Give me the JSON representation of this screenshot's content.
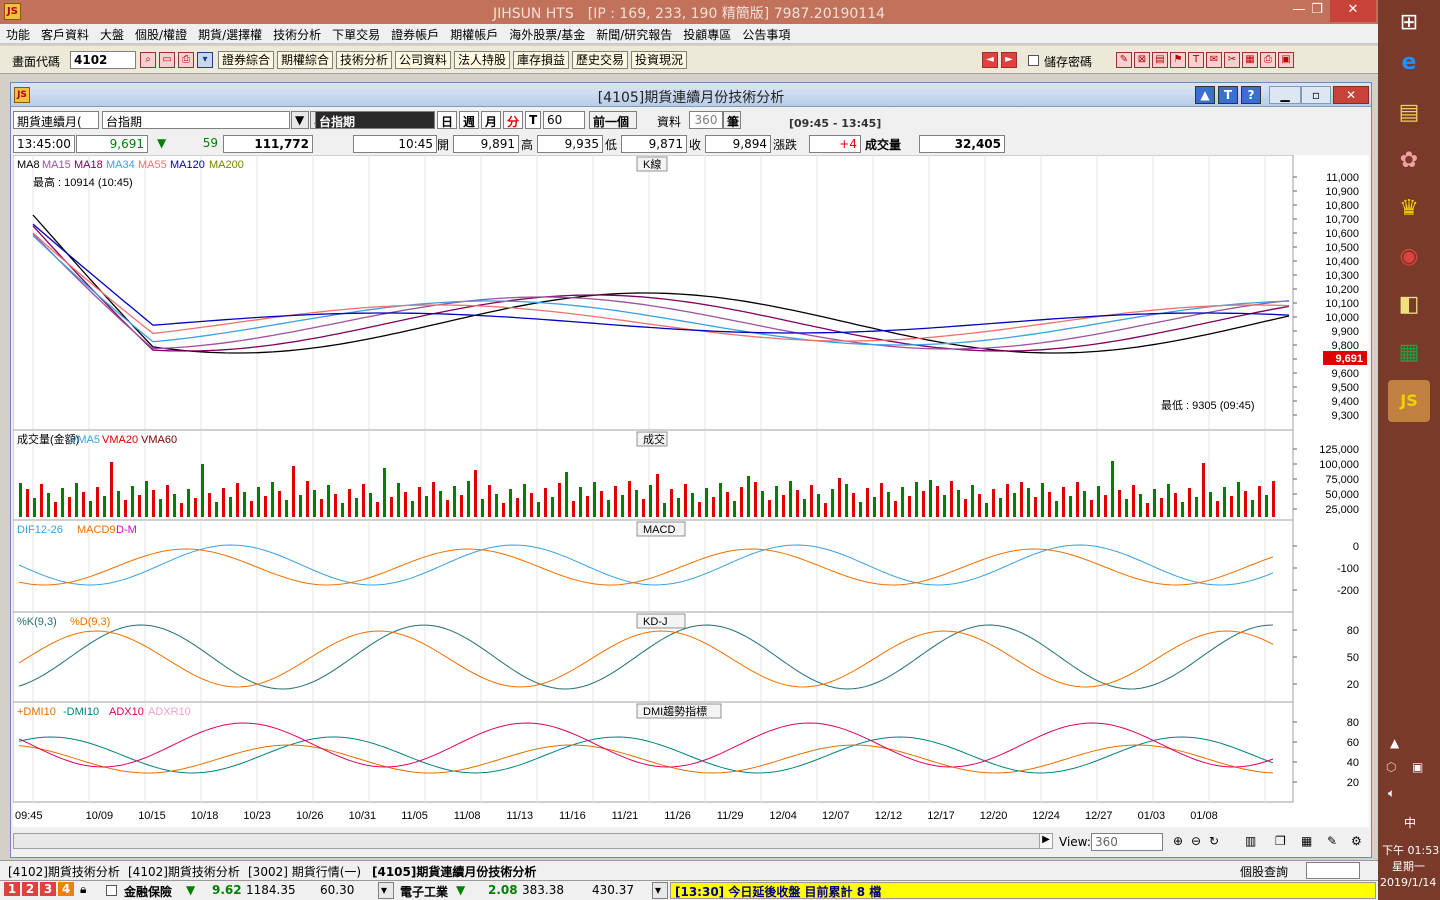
{
  "window": {
    "title": "JIHSUN HTS　[IP : 169, 233, 190 精簡版] 7987.20190114",
    "logo": "JS",
    "min": "—",
    "max": "❐",
    "close": "✕"
  },
  "menu": [
    "功能",
    "客戶資料",
    "大盤",
    "個股/權證",
    "期貨/選擇權",
    "技術分析",
    "下單交易",
    "證券帳戶",
    "期權帳戶",
    "海外股票/基金",
    "新聞/研究報告",
    "投顧專區",
    "公告事項"
  ],
  "toolbar": {
    "code_label": "畫面代碼",
    "code_value": "4102",
    "buttons": [
      "證券綜合",
      "期權綜合",
      "技術分析",
      "公司資料",
      "法人持股",
      "庫存損益",
      "歷史交易",
      "投資現況"
    ],
    "save_pwd": "儲存密碼"
  },
  "child": {
    "title": "[4105]期貨連續月份技術分析",
    "btn_up": "▲",
    "btn_t": "T",
    "btn_help": "?"
  },
  "controls": {
    "contract": "期貨連續月(",
    "index": "台指期",
    "name_box": "台指期",
    "periods": [
      "日",
      "週",
      "月",
      "分",
      "T"
    ],
    "minutes": "60",
    "prev": "前一個",
    "data_label": "資料",
    "data_count": "360",
    "unit": "筆",
    "time_range": "[09:45 - 13:45]"
  },
  "quote": {
    "time": "13:45:00",
    "price": "9,691",
    "arrow": "▼",
    "change": "59",
    "volume_total": "111,772",
    "bar_time": "10:45",
    "open_label": "開",
    "open": "9,891",
    "high_label": "高",
    "high": "9,935",
    "low_label": "低",
    "low": "9,871",
    "close_label": "收",
    "close": "9,894",
    "chg_label": "漲跌",
    "chg": "+4",
    "vol_label": "成交量",
    "vol": "32,405"
  },
  "panels": {
    "k": {
      "title": "K線",
      "legend": [
        "MA8",
        "MA15",
        "MA18",
        "MA34",
        "MA55",
        "MA120",
        "MA200"
      ],
      "legend_colors": [
        "#000000",
        "#a050a0",
        "#800060",
        "#3aa0e0",
        "#f07070",
        "#0000c0",
        "#808000"
      ],
      "max_label": "最高 : 10914 (10:45)",
      "min_label": "最低 : 9305 (09:45)",
      "ticks": [
        "11,000",
        "10,900",
        "10,800",
        "10,700",
        "10,600",
        "10,500",
        "10,400",
        "10,300",
        "10,200",
        "10,100",
        "10,000",
        "9,900",
        "9,800",
        "9,700",
        "9,600",
        "9,500",
        "9,400",
        "9,300"
      ],
      "last": "9,691"
    },
    "vol": {
      "title": "成交",
      "legend": [
        "成交量(金額)",
        "VMA5",
        "VMA20",
        "VMA60"
      ],
      "legend_colors": [
        "#000000",
        "#3aa0e0",
        "#e00000",
        "#800000"
      ],
      "ticks": [
        "125,000",
        "100,000",
        "75,000",
        "50,000",
        "25,000"
      ]
    },
    "macd": {
      "title": "MACD",
      "legend": [
        "DIF12-26",
        "MACD9",
        "D-M"
      ],
      "legend_colors": [
        "#3aa0e0",
        "#f07000",
        "#e000e0"
      ],
      "ticks": [
        "0",
        "-100",
        "-200"
      ]
    },
    "kd": {
      "title": "KD-J",
      "legend": [
        "%K(9,3)",
        "%D(9,3)"
      ],
      "legend_colors": [
        "#207070",
        "#f07000"
      ],
      "ticks": [
        "80",
        "50",
        "20"
      ]
    },
    "dmi": {
      "title": "DMI趨勢指標",
      "legend": [
        "+DMI10",
        "-DMI10",
        "ADX10",
        "ADXR10"
      ],
      "legend_colors": [
        "#e07000",
        "#008080",
        "#e00060",
        "#f0a0d0"
      ],
      "ticks": [
        "80",
        "60",
        "40",
        "20"
      ]
    }
  },
  "xaxis": [
    "09:45",
    "10/09",
    "10/15",
    "10/18",
    "10/23",
    "10/26",
    "10/31",
    "11/05",
    "11/08",
    "11/13",
    "11/16",
    "11/21",
    "11/26",
    "11/29",
    "12/04",
    "12/07",
    "12/12",
    "12/17",
    "12/20",
    "12/24",
    "12/27",
    "01/03",
    "01/08"
  ],
  "view": {
    "label": "View:",
    "value": "360"
  },
  "tabs": [
    "[4102]期貨技術分析",
    "[4102]期貨技術分析",
    "[3002] 期貨行情(一)",
    "[4105]期貨連續月份技術分析"
  ],
  "tabs_right": "個股查詢",
  "status": {
    "nums": [
      "1",
      "2",
      "3",
      "4"
    ],
    "sector1": "金融保險",
    "s1_arrow": "▼",
    "s1_chg": "9.62",
    "s1_val": "1184.35",
    "s1_vol": "60.30",
    "sector2": "電子工業",
    "s2_arrow": "▼",
    "s2_chg": "2.08",
    "s2_val": "383.38",
    "s2_vol": "430.37",
    "news": "[13:30] 今日延後收盤 目前累計 8 檔"
  },
  "clock": {
    "time": "下午 01:53",
    "day": "星期一",
    "date": "2019/1/14",
    "ime": "中"
  }
}
